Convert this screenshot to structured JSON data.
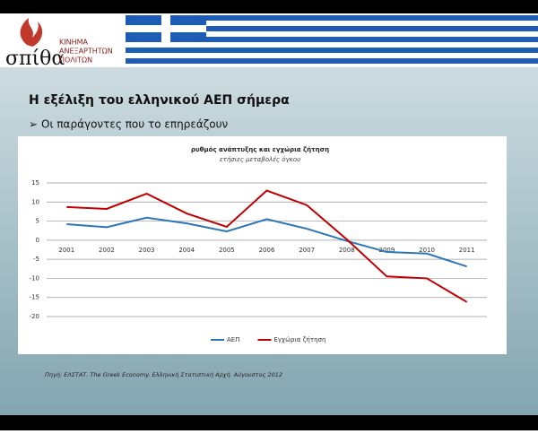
{
  "slide": {
    "logo": "σπίθα",
    "logo_lines": [
      "ΚΙΝΗΜΑ",
      "ΑΝΕΞΑΡΤΗΤΩΝ",
      "ΠΟΛΙΤΩΝ"
    ],
    "title": "Η εξέλιξη του ελληνικού ΑΕΠ σήμερα",
    "bullet": "Οι παράγοντες που το επηρεάζουν",
    "source": "Πηγή: ΕΛΣΤΑΤ. The Greek Economy. Ελληνική Στατιστική Αρχή. Αύγουστος 2012"
  },
  "chart_data": {
    "type": "line",
    "title": "ρυθμός ανάπτυξης και εγχώρια ζήτηση",
    "subtitle": "ετήσιες μεταβολές όγκου",
    "categories": [
      "2001",
      "2002",
      "2003",
      "2004",
      "2005",
      "2006",
      "2007",
      "2008",
      "2009",
      "2010",
      "2011"
    ],
    "series": [
      {
        "name": "ΑΕΠ",
        "color": "#2e75b6",
        "values": [
          4.2,
          3.4,
          5.9,
          4.4,
          2.3,
          5.5,
          3.0,
          -0.2,
          -3.1,
          -3.5,
          -6.9
        ]
      },
      {
        "name": "Εγχώρια ζήτηση",
        "color": "#c00000",
        "values": [
          8.7,
          8.2,
          12.2,
          7.0,
          3.5,
          13.0,
          9.2,
          0.2,
          -9.5,
          -10.0,
          -16.2
        ]
      }
    ],
    "ylim": [
      -20,
      15
    ],
    "yticks": [
      -20,
      -15,
      -10,
      -5,
      0,
      5,
      10,
      15
    ],
    "grid": true,
    "legend": "bottom"
  }
}
